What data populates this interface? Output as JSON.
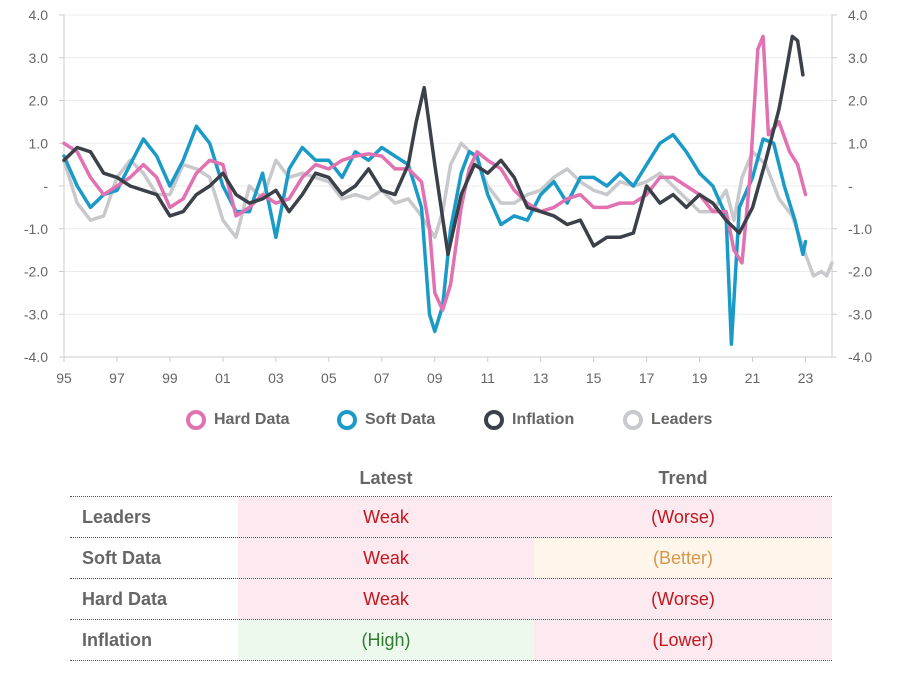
{
  "chart_data": {
    "type": "line",
    "x_ticks": [
      "95",
      "97",
      "99",
      "01",
      "03",
      "05",
      "07",
      "09",
      "11",
      "13",
      "15",
      "17",
      "19",
      "21",
      "23"
    ],
    "y_ticks": [
      "4.0",
      "3.0",
      "2.0",
      "1.0",
      "-",
      "-1.0",
      "-2.0",
      "-3.0",
      "-4.0"
    ],
    "ylim": [
      -4,
      4
    ],
    "xlim": [
      1995,
      2024
    ],
    "grid": true,
    "legend_position": "bottom",
    "series": [
      {
        "name": "Hard Data",
        "color": "#e171b0",
        "points": [
          [
            1995.0,
            1.0
          ],
          [
            1995.5,
            0.8
          ],
          [
            1996.0,
            0.2
          ],
          [
            1996.5,
            -0.2
          ],
          [
            1997.0,
            0.0
          ],
          [
            1997.5,
            0.2
          ],
          [
            1998.0,
            0.5
          ],
          [
            1998.5,
            0.2
          ],
          [
            1999.0,
            -0.5
          ],
          [
            1999.5,
            -0.3
          ],
          [
            2000.0,
            0.3
          ],
          [
            2000.5,
            0.6
          ],
          [
            2001.0,
            0.5
          ],
          [
            2001.5,
            -0.7
          ],
          [
            2002.0,
            -0.5
          ],
          [
            2002.5,
            -0.2
          ],
          [
            2003.0,
            -0.4
          ],
          [
            2003.5,
            -0.3
          ],
          [
            2004.0,
            0.2
          ],
          [
            2004.5,
            0.5
          ],
          [
            2005.0,
            0.4
          ],
          [
            2005.5,
            0.6
          ],
          [
            2006.0,
            0.7
          ],
          [
            2006.5,
            0.75
          ],
          [
            2007.0,
            0.7
          ],
          [
            2007.5,
            0.4
          ],
          [
            2008.0,
            0.4
          ],
          [
            2008.5,
            0.1
          ],
          [
            2008.8,
            -1.0
          ],
          [
            2009.0,
            -2.5
          ],
          [
            2009.3,
            -2.9
          ],
          [
            2009.6,
            -2.3
          ],
          [
            2010.0,
            -0.5
          ],
          [
            2010.3,
            0.4
          ],
          [
            2010.6,
            0.8
          ],
          [
            2011.0,
            0.6
          ],
          [
            2011.5,
            0.4
          ],
          [
            2012.0,
            -0.1
          ],
          [
            2012.5,
            -0.4
          ],
          [
            2013.0,
            -0.6
          ],
          [
            2013.5,
            -0.5
          ],
          [
            2014.0,
            -0.3
          ],
          [
            2014.5,
            -0.2
          ],
          [
            2015.0,
            -0.5
          ],
          [
            2015.5,
            -0.5
          ],
          [
            2016.0,
            -0.4
          ],
          [
            2016.5,
            -0.4
          ],
          [
            2017.0,
            -0.2
          ],
          [
            2017.5,
            0.2
          ],
          [
            2018.0,
            0.2
          ],
          [
            2018.5,
            0.0
          ],
          [
            2019.0,
            -0.2
          ],
          [
            2019.5,
            -0.6
          ],
          [
            2020.0,
            -0.6
          ],
          [
            2020.3,
            -1.5
          ],
          [
            2020.6,
            -1.8
          ],
          [
            2020.9,
            0.2
          ],
          [
            2021.2,
            3.2
          ],
          [
            2021.4,
            3.5
          ],
          [
            2021.6,
            1.2
          ],
          [
            2022.0,
            1.5
          ],
          [
            2022.4,
            0.8
          ],
          [
            2022.7,
            0.5
          ],
          [
            2023.0,
            -0.2
          ]
        ]
      },
      {
        "name": "Soft Data",
        "color": "#1a9bc7",
        "points": [
          [
            1995.0,
            0.7
          ],
          [
            1995.5,
            0.0
          ],
          [
            1996.0,
            -0.5
          ],
          [
            1996.5,
            -0.2
          ],
          [
            1997.0,
            -0.1
          ],
          [
            1997.5,
            0.5
          ],
          [
            1998.0,
            1.1
          ],
          [
            1998.5,
            0.7
          ],
          [
            1999.0,
            0.0
          ],
          [
            1999.5,
            0.6
          ],
          [
            2000.0,
            1.4
          ],
          [
            2000.5,
            1.0
          ],
          [
            2001.0,
            0.0
          ],
          [
            2001.5,
            -0.6
          ],
          [
            2002.0,
            -0.6
          ],
          [
            2002.5,
            0.3
          ],
          [
            2003.0,
            -1.2
          ],
          [
            2003.5,
            0.4
          ],
          [
            2004.0,
            0.9
          ],
          [
            2004.5,
            0.6
          ],
          [
            2005.0,
            0.6
          ],
          [
            2005.5,
            0.2
          ],
          [
            2006.0,
            0.8
          ],
          [
            2006.5,
            0.6
          ],
          [
            2007.0,
            0.9
          ],
          [
            2007.5,
            0.7
          ],
          [
            2008.0,
            0.5
          ],
          [
            2008.5,
            -0.5
          ],
          [
            2008.8,
            -3.0
          ],
          [
            2009.0,
            -3.4
          ],
          [
            2009.3,
            -2.8
          ],
          [
            2009.6,
            -1.0
          ],
          [
            2010.0,
            0.3
          ],
          [
            2010.3,
            0.8
          ],
          [
            2010.6,
            0.7
          ],
          [
            2011.0,
            -0.2
          ],
          [
            2011.5,
            -0.9
          ],
          [
            2012.0,
            -0.7
          ],
          [
            2012.5,
            -0.8
          ],
          [
            2013.0,
            -0.2
          ],
          [
            2013.5,
            0.1
          ],
          [
            2014.0,
            -0.4
          ],
          [
            2014.5,
            0.2
          ],
          [
            2015.0,
            0.2
          ],
          [
            2015.5,
            0.0
          ],
          [
            2016.0,
            0.3
          ],
          [
            2016.5,
            0.0
          ],
          [
            2017.0,
            0.5
          ],
          [
            2017.5,
            1.0
          ],
          [
            2018.0,
            1.2
          ],
          [
            2018.5,
            0.8
          ],
          [
            2019.0,
            0.3
          ],
          [
            2019.5,
            0.0
          ],
          [
            2020.0,
            -0.7
          ],
          [
            2020.2,
            -3.7
          ],
          [
            2020.5,
            -0.5
          ],
          [
            2021.0,
            0.2
          ],
          [
            2021.4,
            1.1
          ],
          [
            2021.8,
            1.0
          ],
          [
            2022.2,
            0.0
          ],
          [
            2022.6,
            -0.8
          ],
          [
            2022.9,
            -1.6
          ],
          [
            2023.0,
            -1.3
          ]
        ]
      },
      {
        "name": "Inflation",
        "color": "#3c4149",
        "points": [
          [
            1995.0,
            0.6
          ],
          [
            1995.5,
            0.9
          ],
          [
            1996.0,
            0.8
          ],
          [
            1996.5,
            0.3
          ],
          [
            1997.0,
            0.2
          ],
          [
            1997.5,
            0.0
          ],
          [
            1998.0,
            -0.1
          ],
          [
            1998.5,
            -0.2
          ],
          [
            1999.0,
            -0.7
          ],
          [
            1999.5,
            -0.6
          ],
          [
            2000.0,
            -0.2
          ],
          [
            2000.5,
            0.0
          ],
          [
            2001.0,
            0.3
          ],
          [
            2001.5,
            -0.2
          ],
          [
            2002.0,
            -0.4
          ],
          [
            2002.5,
            -0.3
          ],
          [
            2003.0,
            -0.1
          ],
          [
            2003.5,
            -0.6
          ],
          [
            2004.0,
            -0.2
          ],
          [
            2004.5,
            0.3
          ],
          [
            2005.0,
            0.2
          ],
          [
            2005.5,
            -0.2
          ],
          [
            2006.0,
            0.0
          ],
          [
            2006.5,
            0.4
          ],
          [
            2007.0,
            -0.1
          ],
          [
            2007.5,
            -0.2
          ],
          [
            2008.0,
            0.5
          ],
          [
            2008.3,
            1.5
          ],
          [
            2008.6,
            2.3
          ],
          [
            2009.0,
            0.5
          ],
          [
            2009.5,
            -1.6
          ],
          [
            2010.0,
            -0.2
          ],
          [
            2010.5,
            0.5
          ],
          [
            2011.0,
            0.3
          ],
          [
            2011.5,
            0.6
          ],
          [
            2012.0,
            0.2
          ],
          [
            2012.5,
            -0.5
          ],
          [
            2013.0,
            -0.6
          ],
          [
            2013.5,
            -0.7
          ],
          [
            2014.0,
            -0.9
          ],
          [
            2014.5,
            -0.8
          ],
          [
            2015.0,
            -1.4
          ],
          [
            2015.5,
            -1.2
          ],
          [
            2016.0,
            -1.2
          ],
          [
            2016.5,
            -1.1
          ],
          [
            2017.0,
            0.0
          ],
          [
            2017.5,
            -0.4
          ],
          [
            2018.0,
            -0.2
          ],
          [
            2018.5,
            -0.5
          ],
          [
            2019.0,
            -0.2
          ],
          [
            2019.5,
            -0.4
          ],
          [
            2020.0,
            -0.8
          ],
          [
            2020.5,
            -1.1
          ],
          [
            2021.0,
            -0.5
          ],
          [
            2021.5,
            0.6
          ],
          [
            2022.0,
            1.8
          ],
          [
            2022.3,
            2.8
          ],
          [
            2022.5,
            3.5
          ],
          [
            2022.7,
            3.4
          ],
          [
            2022.9,
            2.6
          ]
        ]
      },
      {
        "name": "Leaders",
        "color": "#c8c9cc",
        "points": [
          [
            1995.0,
            0.6
          ],
          [
            1995.5,
            -0.4
          ],
          [
            1996.0,
            -0.8
          ],
          [
            1996.5,
            -0.7
          ],
          [
            1997.0,
            0.2
          ],
          [
            1997.5,
            0.6
          ],
          [
            1998.0,
            0.3
          ],
          [
            1998.5,
            -0.2
          ],
          [
            1999.0,
            -0.2
          ],
          [
            1999.5,
            0.5
          ],
          [
            2000.0,
            0.4
          ],
          [
            2000.5,
            0.2
          ],
          [
            2001.0,
            -0.8
          ],
          [
            2001.5,
            -1.2
          ],
          [
            2002.0,
            0.0
          ],
          [
            2002.5,
            -0.3
          ],
          [
            2003.0,
            0.6
          ],
          [
            2003.5,
            0.2
          ],
          [
            2004.0,
            0.3
          ],
          [
            2004.5,
            0.2
          ],
          [
            2005.0,
            0.1
          ],
          [
            2005.5,
            -0.3
          ],
          [
            2006.0,
            -0.2
          ],
          [
            2006.5,
            -0.3
          ],
          [
            2007.0,
            -0.1
          ],
          [
            2007.5,
            -0.4
          ],
          [
            2008.0,
            -0.3
          ],
          [
            2008.5,
            -0.7
          ],
          [
            2009.0,
            -1.2
          ],
          [
            2009.3,
            -0.6
          ],
          [
            2009.6,
            0.5
          ],
          [
            2010.0,
            1.0
          ],
          [
            2010.5,
            0.7
          ],
          [
            2011.0,
            0.0
          ],
          [
            2011.5,
            -0.4
          ],
          [
            2012.0,
            -0.4
          ],
          [
            2012.5,
            -0.2
          ],
          [
            2013.0,
            -0.1
          ],
          [
            2013.5,
            0.2
          ],
          [
            2014.0,
            0.4
          ],
          [
            2014.5,
            0.1
          ],
          [
            2015.0,
            -0.1
          ],
          [
            2015.5,
            -0.2
          ],
          [
            2016.0,
            0.1
          ],
          [
            2016.5,
            0.0
          ],
          [
            2017.0,
            0.1
          ],
          [
            2017.5,
            0.3
          ],
          [
            2018.0,
            0.0
          ],
          [
            2018.5,
            -0.3
          ],
          [
            2019.0,
            -0.6
          ],
          [
            2019.5,
            -0.6
          ],
          [
            2020.0,
            -0.1
          ],
          [
            2020.3,
            -0.8
          ],
          [
            2020.6,
            0.2
          ],
          [
            2021.0,
            0.8
          ],
          [
            2021.5,
            0.5
          ],
          [
            2022.0,
            -0.3
          ],
          [
            2022.5,
            -0.7
          ],
          [
            2023.0,
            -1.6
          ],
          [
            2023.3,
            -2.1
          ],
          [
            2023.6,
            -2.0
          ],
          [
            2023.8,
            -2.1
          ],
          [
            2024.0,
            -1.8
          ]
        ]
      }
    ]
  },
  "table": {
    "columns": [
      "",
      "Latest",
      "Trend"
    ],
    "rows": [
      {
        "label": "Leaders",
        "latest": "Weak",
        "trend": "(Worse)",
        "latest_status": "bad",
        "trend_status": "bad"
      },
      {
        "label": "Soft Data",
        "latest": "Weak",
        "trend": "(Better)",
        "latest_status": "bad",
        "trend_status": "mixed"
      },
      {
        "label": "Hard Data",
        "latest": "Weak",
        "trend": "(Worse)",
        "latest_status": "bad",
        "trend_status": "bad"
      },
      {
        "label": "Inflation",
        "latest": "(High)",
        "trend": "(Lower)",
        "latest_status": "good",
        "trend_status": "bad"
      }
    ]
  },
  "status_colors": {
    "bad": {
      "bg": "#fdeaf0",
      "fg": "#c4161c"
    },
    "mixed": {
      "bg": "#fef6ea",
      "fg": "#d9954a"
    },
    "good": {
      "bg": "#ecf9ec",
      "fg": "#2e7d32"
    }
  }
}
